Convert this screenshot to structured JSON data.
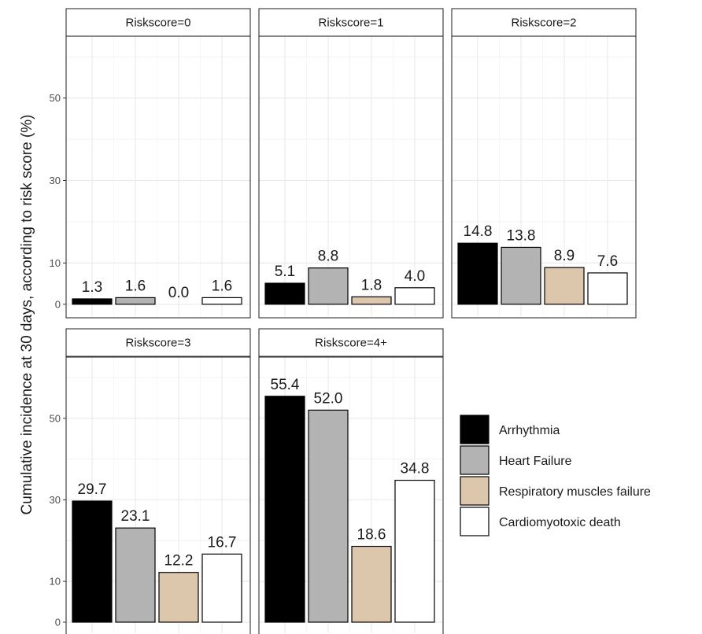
{
  "chart_data": {
    "type": "bar",
    "ylabel": "Cumulative incidence at 30 days, according to risk score (%)",
    "ylim": [
      0,
      65
    ],
    "y_ticks": [
      0,
      10,
      30,
      50
    ],
    "grid": true,
    "legend_position": "right",
    "series": [
      {
        "name": "Arrhythmia",
        "color": "#000000"
      },
      {
        "name": "Heart Failure",
        "color": "#b3b3b3"
      },
      {
        "name": "Respiratory muscles failure",
        "color": "#dcc7ad"
      },
      {
        "name": "Cardiomyotoxic death",
        "color": "#ffffff"
      }
    ],
    "panels": [
      {
        "label": "Riskscore=0",
        "values": [
          1.3,
          1.6,
          0.0,
          1.6
        ]
      },
      {
        "label": "Riskscore=1",
        "values": [
          5.1,
          8.8,
          1.8,
          4.0
        ]
      },
      {
        "label": "Riskscore=2",
        "values": [
          14.8,
          13.8,
          8.9,
          7.6
        ]
      },
      {
        "label": "Riskscore=3",
        "values": [
          29.7,
          23.1,
          12.2,
          16.7
        ]
      },
      {
        "label": "Riskscore=4+",
        "values": [
          55.4,
          52.0,
          18.6,
          34.8
        ]
      }
    ]
  }
}
